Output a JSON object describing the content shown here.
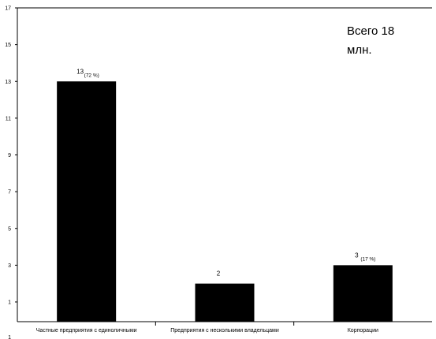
{
  "chart_data": {
    "type": "bar",
    "categories": [
      "Частные предприятия с единоличными",
      "Предприятия с несколькими владельцами",
      "Корпорации"
    ],
    "values": [
      13,
      2,
      3
    ],
    "value_labels": [
      "13",
      "2",
      "3"
    ],
    "percent_labels": [
      "(72 %)",
      "",
      "(17 %)"
    ],
    "annotation": [
      "Всего 18",
      "млн."
    ],
    "yticks": [
      "1",
      "3",
      "5",
      "7",
      "9",
      "11",
      "13",
      "15",
      "17"
    ],
    "ylim": [
      1,
      17
    ],
    "grid": false,
    "bar_color": "#000000",
    "title": "",
    "xlabel": "",
    "ylabel": ""
  }
}
